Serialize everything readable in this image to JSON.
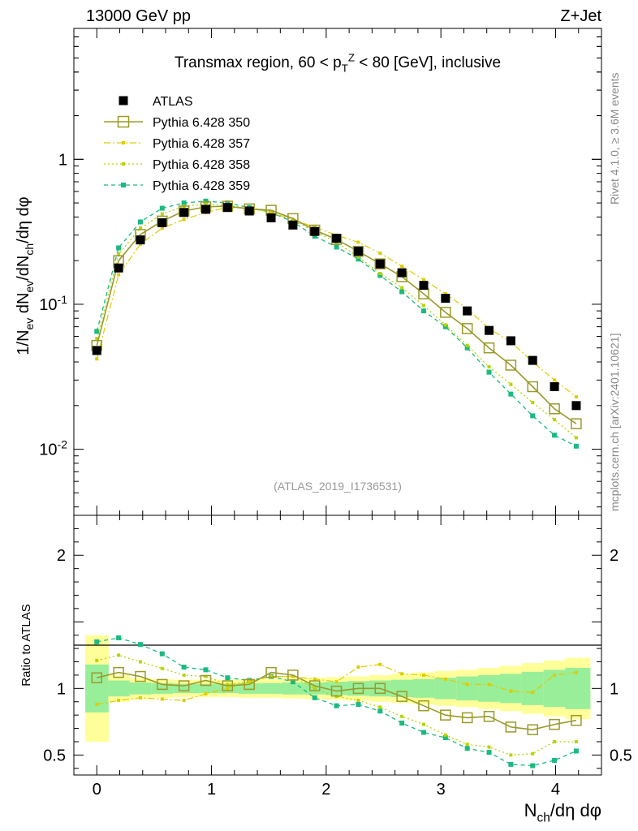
{
  "header": {
    "left": "13000 GeV pp",
    "right": "Z+Jet",
    "side_top": "Rivet 4.1.0, ≥ 3.6M events",
    "side_bottom": "mcplots.cern.ch [arXiv:2401.10621]"
  },
  "chart_data": [
    {
      "type": "line",
      "title": "Transmax region, 60 < p_T^Z < 80 [GeV], inclusive",
      "analysis_label": "(ATLAS_2019_I1736531)",
      "ylabel": "1/N_ev dN_ev/dN_ch/dη dφ",
      "xlabel": "N_ch/dη dφ",
      "yscale": "log",
      "xlim": [
        -0.2,
        4.4
      ],
      "ylim": [
        0.0035,
        8
      ],
      "y_ticks": [
        {
          "value": 0.01,
          "label": "10^-2"
        },
        {
          "value": 0.1,
          "label": "10^-1"
        },
        {
          "value": 1,
          "label": "1"
        }
      ],
      "x": [
        0.0,
        0.19,
        0.38,
        0.57,
        0.76,
        0.95,
        1.14,
        1.33,
        1.52,
        1.71,
        1.9,
        2.09,
        2.28,
        2.47,
        2.66,
        2.85,
        3.04,
        3.23,
        3.42,
        3.61,
        3.8,
        3.99,
        4.18
      ],
      "legend": [
        {
          "name": "ATLAS",
          "style": "data"
        },
        {
          "name": "Pythia 6.428 350",
          "style": "open-square-solid"
        },
        {
          "name": "Pythia 6.428 357",
          "style": "dashdot-small"
        },
        {
          "name": "Pythia 6.428 358",
          "style": "dotted-small"
        },
        {
          "name": "Pythia 6.428 359",
          "style": "dashed-square"
        }
      ],
      "series": [
        {
          "name": "ATLAS",
          "color": "#000000",
          "values": [
            0.048,
            0.178,
            0.278,
            0.365,
            0.43,
            0.452,
            0.465,
            0.44,
            0.395,
            0.352,
            0.318,
            0.285,
            0.232,
            0.19,
            0.165,
            0.135,
            0.11,
            0.09,
            0.066,
            0.056,
            0.041,
            0.027,
            0.02
          ]
        },
        {
          "name": "Pythia 6.428 350",
          "color": "#9a9a2a",
          "values": [
            0.052,
            0.2,
            0.303,
            0.375,
            0.44,
            0.47,
            0.475,
            0.455,
            0.445,
            0.39,
            0.325,
            0.28,
            0.232,
            0.19,
            0.155,
            0.118,
            0.088,
            0.068,
            0.05,
            0.038,
            0.027,
            0.019,
            0.015
          ]
        },
        {
          "name": "Pythia 6.428 357",
          "color": "#ddcc00",
          "values": [
            0.042,
            0.16,
            0.26,
            0.335,
            0.385,
            0.43,
            0.465,
            0.46,
            0.43,
            0.385,
            0.34,
            0.3,
            0.268,
            0.225,
            0.183,
            0.148,
            0.118,
            0.093,
            0.068,
            0.055,
            0.04,
            0.03,
            0.023
          ]
        },
        {
          "name": "Pythia 6.428 358",
          "color": "#b8d400",
          "values": [
            0.058,
            0.222,
            0.335,
            0.42,
            0.475,
            0.49,
            0.48,
            0.46,
            0.43,
            0.382,
            0.318,
            0.268,
            0.212,
            0.163,
            0.13,
            0.098,
            0.072,
            0.052,
            0.037,
            0.028,
            0.021,
            0.016,
            0.012
          ]
        },
        {
          "name": "Pythia 6.428 359",
          "color": "#1aba80",
          "values": [
            0.065,
            0.245,
            0.37,
            0.46,
            0.5,
            0.515,
            0.5,
            0.465,
            0.43,
            0.37,
            0.295,
            0.248,
            0.205,
            0.158,
            0.122,
            0.09,
            0.07,
            0.05,
            0.034,
            0.024,
            0.017,
            0.0125,
            0.0105
          ]
        }
      ]
    },
    {
      "type": "line",
      "ylabel": "Ratio to ATLAS",
      "xlabel": "N_ch/dη dφ",
      "xlim": [
        -0.2,
        4.4
      ],
      "ylim": [
        0.35,
        2.3
      ],
      "y_ticks": [
        {
          "value": 0.5,
          "label": "0.5"
        },
        {
          "value": 1,
          "label": "1"
        },
        {
          "value": 2,
          "label": "2"
        }
      ],
      "x_ticks": [
        {
          "value": 0,
          "label": "0"
        },
        {
          "value": 1,
          "label": "1"
        },
        {
          "value": 2,
          "label": "2"
        },
        {
          "value": 3,
          "label": "3"
        },
        {
          "value": 4,
          "label": "4"
        }
      ],
      "band": {
        "edges": [
          -0.1,
          0.1,
          0.285,
          0.475,
          0.665,
          0.855,
          1.045,
          1.235,
          1.425,
          1.615,
          1.805,
          1.995,
          2.185,
          2.375,
          2.565,
          2.755,
          2.945,
          3.135,
          3.325,
          3.515,
          3.705,
          3.895,
          4.085,
          4.3
        ],
        "yellow_low": [
          0.6,
          0.9,
          0.92,
          0.93,
          0.935,
          0.935,
          0.935,
          0.93,
          0.93,
          0.925,
          0.92,
          0.915,
          0.91,
          0.9,
          0.89,
          0.88,
          0.87,
          0.86,
          0.845,
          0.83,
          0.81,
          0.79,
          0.77
        ],
        "yellow_high": [
          1.4,
          1.1,
          1.08,
          1.07,
          1.065,
          1.065,
          1.065,
          1.07,
          1.07,
          1.075,
          1.08,
          1.085,
          1.09,
          1.1,
          1.11,
          1.12,
          1.13,
          1.14,
          1.155,
          1.17,
          1.19,
          1.21,
          1.23
        ],
        "green_low": [
          0.82,
          0.94,
          0.955,
          0.96,
          0.965,
          0.965,
          0.965,
          0.96,
          0.96,
          0.955,
          0.955,
          0.95,
          0.945,
          0.94,
          0.935,
          0.93,
          0.92,
          0.91,
          0.9,
          0.89,
          0.875,
          0.86,
          0.845
        ],
        "green_high": [
          1.18,
          1.06,
          1.045,
          1.04,
          1.035,
          1.035,
          1.035,
          1.04,
          1.04,
          1.045,
          1.045,
          1.05,
          1.055,
          1.06,
          1.065,
          1.07,
          1.08,
          1.09,
          1.1,
          1.11,
          1.125,
          1.14,
          1.155
        ]
      },
      "series": [
        {
          "name": "Pythia 6.428 350",
          "color": "#9a9a2a",
          "values": [
            1.08,
            1.12,
            1.09,
            1.03,
            1.02,
            1.06,
            1.02,
            1.03,
            1.12,
            1.1,
            1.02,
            0.98,
            1.0,
            1.0,
            0.94,
            0.87,
            0.8,
            0.78,
            0.79,
            0.71,
            0.69,
            0.73,
            0.76
          ]
        },
        {
          "name": "Pythia 6.428 357",
          "color": "#ddcc00",
          "values": [
            0.88,
            0.91,
            0.93,
            0.92,
            0.91,
            0.96,
            1.0,
            1.05,
            1.09,
            1.09,
            1.07,
            1.05,
            1.16,
            1.18,
            1.11,
            1.1,
            1.07,
            1.03,
            1.03,
            0.98,
            0.97,
            1.1,
            1.12
          ]
        },
        {
          "name": "Pythia 6.428 358",
          "color": "#b8d400",
          "values": [
            1.21,
            1.25,
            1.2,
            1.15,
            1.1,
            1.09,
            1.03,
            1.05,
            1.09,
            1.09,
            1.0,
            0.94,
            0.91,
            0.86,
            0.79,
            0.73,
            0.65,
            0.58,
            0.56,
            0.5,
            0.51,
            0.6,
            0.6
          ]
        },
        {
          "name": "Pythia 6.428 359",
          "color": "#1aba80",
          "values": [
            1.35,
            1.38,
            1.33,
            1.26,
            1.16,
            1.14,
            1.08,
            1.06,
            1.09,
            1.05,
            0.93,
            0.87,
            0.88,
            0.83,
            0.74,
            0.67,
            0.63,
            0.55,
            0.52,
            0.43,
            0.42,
            0.46,
            0.53
          ]
        }
      ]
    }
  ]
}
